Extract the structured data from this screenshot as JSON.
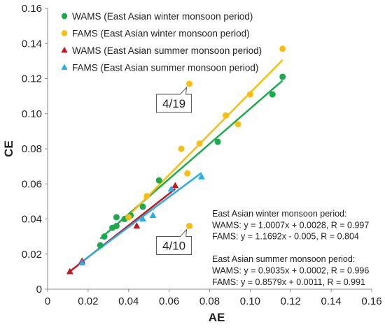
{
  "chart_data": {
    "type": "scatter",
    "xlabel": "AE",
    "ylabel": "CE",
    "xlim": [
      0,
      0.16
    ],
    "ylim": [
      0,
      0.16
    ],
    "xticks": [
      "0",
      "0.02",
      "0.04",
      "0.06",
      "0.08",
      "0.10",
      "0.12",
      "0.14",
      "0.16"
    ],
    "yticks": [
      "0",
      "0.02",
      "0.04",
      "0.06",
      "0.08",
      "0.10",
      "0.12",
      "0.14",
      "0.16"
    ],
    "grid": false,
    "legend_position": "top-left",
    "series": [
      {
        "name": "WAMS (East Asian winter monsoon period)",
        "marker": "circle",
        "color": "#1aab4c",
        "points": [
          [
            0.026,
            0.025
          ],
          [
            0.028,
            0.03
          ],
          [
            0.032,
            0.035
          ],
          [
            0.034,
            0.036
          ],
          [
            0.034,
            0.041
          ],
          [
            0.038,
            0.04
          ],
          [
            0.041,
            0.042
          ],
          [
            0.047,
            0.047
          ],
          [
            0.055,
            0.062
          ],
          [
            0.084,
            0.084
          ],
          [
            0.111,
            0.111
          ],
          [
            0.116,
            0.121
          ]
        ],
        "fit": {
          "x": [
            0.026,
            0.116
          ],
          "y": [
            0.0288,
            0.1189
          ]
        }
      },
      {
        "name": "FAMS (East Asian winter monsoon period)",
        "marker": "circle",
        "color": "#fbbd0f",
        "points": [
          [
            0.04,
            0.041
          ],
          [
            0.049,
            0.053
          ],
          [
            0.066,
            0.08
          ],
          [
            0.069,
            0.066
          ],
          [
            0.07,
            0.117
          ],
          [
            0.07,
            0.036
          ],
          [
            0.075,
            0.083
          ],
          [
            0.088,
            0.099
          ],
          [
            0.094,
            0.094
          ],
          [
            0.1,
            0.111
          ],
          [
            0.116,
            0.137
          ]
        ],
        "fit": {
          "x": [
            0.037,
            0.116
          ],
          "y": [
            0.0383,
            0.1306
          ]
        }
      },
      {
        "name": "WAMS (East Asian summer monsoon period)",
        "marker": "triangle",
        "color": "#c8141e",
        "points": [
          [
            0.011,
            0.01
          ],
          [
            0.017,
            0.016
          ],
          [
            0.044,
            0.036
          ],
          [
            0.063,
            0.059
          ]
        ],
        "fit": {
          "x": [
            0.01,
            0.063
          ],
          "y": [
            0.0092,
            0.0571
          ]
        }
      },
      {
        "name": "FAMS (East Asian summer monsoon period)",
        "marker": "triangle",
        "color": "#27aee8",
        "points": [
          [
            0.017,
            0.015
          ],
          [
            0.047,
            0.04
          ],
          [
            0.052,
            0.042
          ],
          [
            0.061,
            0.057
          ],
          [
            0.076,
            0.064
          ]
        ],
        "fit": {
          "x": [
            0.017,
            0.076
          ],
          "y": [
            0.0157,
            0.0663
          ]
        }
      }
    ],
    "callouts": [
      {
        "text": "4/19",
        "x": 0.07,
        "y": 0.117
      },
      {
        "text": "4/10",
        "x": 0.07,
        "y": 0.036
      }
    ],
    "annotation": {
      "lines": [
        "East Asian winter monsoon period:",
        "WAMS: y = 1.0007x + 0.0028, R = 0.997",
        "FAMS: y = 1.1692x - 0.005, R = 0.804",
        "",
        "East Asian summer monsoon period:",
        "WAMS: y = 0.9035x + 0.0002, R = 0.996",
        "FAMS: y = 0.8579x + 0.0011, R = 0.991"
      ]
    }
  }
}
